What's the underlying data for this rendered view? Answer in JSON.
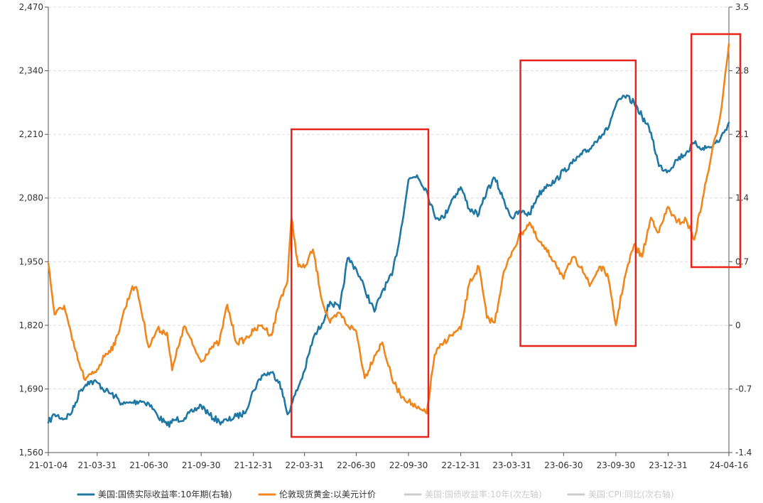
{
  "chart_data": {
    "type": "line",
    "title": "",
    "x_ticks": [
      "21-01-04",
      "21-03-31",
      "21-06-30",
      "21-09-30",
      "21-12-31",
      "22-03-31",
      "22-06-30",
      "22-09-30",
      "22-12-31",
      "23-03-31",
      "23-06-30",
      "23-09-30",
      "23-12-31",
      "24-04-16"
    ],
    "left_axis": {
      "ylim": [
        1560,
        2470
      ],
      "ticks": [
        "1,560",
        "1,690",
        "1,820",
        "1,950",
        "2,080",
        "2,210",
        "2,340",
        "2,470"
      ]
    },
    "right_axis": {
      "ylim": [
        -1.4,
        3.5
      ],
      "ticks": [
        "-1.4",
        "-0.7",
        "0",
        "0.7",
        "1.4",
        "2.1",
        "2.8",
        "3.5"
      ]
    },
    "grid": true,
    "legend_position": "bottom",
    "series": [
      {
        "name": "美国:国债实际收益率:10年期(右轴)",
        "axis": "right",
        "color": "#1f77a4",
        "active": true,
        "points": [
          [
            "21-01-04",
            -1.07
          ],
          [
            "21-01-15",
            -0.98
          ],
          [
            "21-02-01",
            -1.03
          ],
          [
            "21-02-15",
            -0.95
          ],
          [
            "21-03-01",
            -0.72
          ],
          [
            "21-03-15",
            -0.62
          ],
          [
            "21-03-31",
            -0.63
          ],
          [
            "21-04-15",
            -0.72
          ],
          [
            "21-05-01",
            -0.78
          ],
          [
            "21-05-15",
            -0.87
          ],
          [
            "21-06-01",
            -0.85
          ],
          [
            "21-06-15",
            -0.83
          ],
          [
            "21-06-30",
            -0.86
          ],
          [
            "21-07-15",
            -0.99
          ],
          [
            "21-08-01",
            -1.1
          ],
          [
            "21-08-15",
            -1.04
          ],
          [
            "21-09-01",
            -1.02
          ],
          [
            "21-09-15",
            -0.95
          ],
          [
            "21-09-30",
            -0.88
          ],
          [
            "21-10-15",
            -0.99
          ],
          [
            "21-11-01",
            -1.06
          ],
          [
            "21-11-15",
            -1.05
          ],
          [
            "21-12-01",
            -1.0
          ],
          [
            "21-12-15",
            -0.97
          ],
          [
            "21-12-31",
            -0.72
          ],
          [
            "22-01-15",
            -0.55
          ],
          [
            "22-02-01",
            -0.52
          ],
          [
            "22-02-15",
            -0.62
          ],
          [
            "22-03-01",
            -0.98
          ],
          [
            "22-03-10",
            -0.84
          ],
          [
            "22-03-31",
            -0.5
          ],
          [
            "22-04-15",
            -0.15
          ],
          [
            "22-05-01",
            0.02
          ],
          [
            "22-05-15",
            0.26
          ],
          [
            "22-06-01",
            0.18
          ],
          [
            "22-06-15",
            0.74
          ],
          [
            "22-06-30",
            0.62
          ],
          [
            "22-07-15",
            0.4
          ],
          [
            "22-08-01",
            0.15
          ],
          [
            "22-08-15",
            0.38
          ],
          [
            "22-09-01",
            0.55
          ],
          [
            "22-09-15",
            0.98
          ],
          [
            "22-09-30",
            1.6
          ],
          [
            "22-10-15",
            1.65
          ],
          [
            "22-11-01",
            1.48
          ],
          [
            "22-11-15",
            1.2
          ],
          [
            "22-12-01",
            1.18
          ],
          [
            "22-12-15",
            1.38
          ],
          [
            "22-12-31",
            1.52
          ],
          [
            "23-01-15",
            1.28
          ],
          [
            "23-02-01",
            1.22
          ],
          [
            "23-02-15",
            1.48
          ],
          [
            "23-03-01",
            1.62
          ],
          [
            "23-03-15",
            1.4
          ],
          [
            "23-03-31",
            1.18
          ],
          [
            "23-04-15",
            1.25
          ],
          [
            "23-05-01",
            1.22
          ],
          [
            "23-05-15",
            1.42
          ],
          [
            "23-06-01",
            1.55
          ],
          [
            "23-06-15",
            1.58
          ],
          [
            "23-06-30",
            1.7
          ],
          [
            "23-07-15",
            1.78
          ],
          [
            "23-08-01",
            1.88
          ],
          [
            "23-08-15",
            1.94
          ],
          [
            "23-09-01",
            2.08
          ],
          [
            "23-09-15",
            2.15
          ],
          [
            "23-09-30",
            2.42
          ],
          [
            "23-10-15",
            2.52
          ],
          [
            "23-11-01",
            2.45
          ],
          [
            "23-11-15",
            2.3
          ],
          [
            "23-12-01",
            2.12
          ],
          [
            "23-12-15",
            1.75
          ],
          [
            "23-12-31",
            1.7
          ],
          [
            "24-01-15",
            1.82
          ],
          [
            "24-02-01",
            1.9
          ],
          [
            "24-02-15",
            2.0
          ],
          [
            "24-03-01",
            1.95
          ],
          [
            "24-03-15",
            1.96
          ],
          [
            "24-04-01",
            2.05
          ],
          [
            "24-04-16",
            2.23
          ]
        ]
      },
      {
        "name": "伦敦现货黄金:以美元计价",
        "axis": "left",
        "color": "#f0861c",
        "active": true,
        "points": [
          [
            "21-01-04",
            1947
          ],
          [
            "21-01-15",
            1842
          ],
          [
            "21-02-01",
            1860
          ],
          [
            "21-02-15",
            1790
          ],
          [
            "21-03-01",
            1735
          ],
          [
            "21-03-10",
            1708
          ],
          [
            "21-03-31",
            1730
          ],
          [
            "21-04-15",
            1762
          ],
          [
            "21-05-01",
            1780
          ],
          [
            "21-05-15",
            1840
          ],
          [
            "21-06-01",
            1900
          ],
          [
            "21-06-10",
            1890
          ],
          [
            "21-06-30",
            1775
          ],
          [
            "21-07-15",
            1812
          ],
          [
            "21-08-01",
            1805
          ],
          [
            "21-08-10",
            1728
          ],
          [
            "21-08-25",
            1795
          ],
          [
            "21-09-01",
            1818
          ],
          [
            "21-09-15",
            1780
          ],
          [
            "21-09-30",
            1745
          ],
          [
            "21-10-15",
            1772
          ],
          [
            "21-11-01",
            1785
          ],
          [
            "21-11-15",
            1862
          ],
          [
            "21-12-01",
            1785
          ],
          [
            "21-12-15",
            1790
          ],
          [
            "21-12-31",
            1808
          ],
          [
            "22-01-15",
            1820
          ],
          [
            "22-02-01",
            1800
          ],
          [
            "22-02-15",
            1870
          ],
          [
            "22-03-01",
            1910
          ],
          [
            "22-03-08",
            2040
          ],
          [
            "22-03-20",
            1940
          ],
          [
            "22-03-31",
            1938
          ],
          [
            "22-04-15",
            1975
          ],
          [
            "22-05-01",
            1870
          ],
          [
            "22-05-15",
            1825
          ],
          [
            "22-06-01",
            1845
          ],
          [
            "22-06-15",
            1820
          ],
          [
            "22-06-30",
            1808
          ],
          [
            "22-07-15",
            1712
          ],
          [
            "22-08-01",
            1758
          ],
          [
            "22-08-15",
            1785
          ],
          [
            "22-09-01",
            1710
          ],
          [
            "22-09-15",
            1680
          ],
          [
            "22-09-30",
            1665
          ],
          [
            "22-10-15",
            1650
          ],
          [
            "22-11-01",
            1640
          ],
          [
            "22-11-15",
            1760
          ],
          [
            "22-12-01",
            1785
          ],
          [
            "22-12-15",
            1800
          ],
          [
            "22-12-31",
            1812
          ],
          [
            "23-01-15",
            1905
          ],
          [
            "23-02-01",
            1940
          ],
          [
            "23-02-15",
            1835
          ],
          [
            "23-03-01",
            1826
          ],
          [
            "23-03-15",
            1920
          ],
          [
            "23-03-31",
            1970
          ],
          [
            "23-04-15",
            2005
          ],
          [
            "23-05-01",
            2030
          ],
          [
            "23-05-15",
            1995
          ],
          [
            "23-06-01",
            1970
          ],
          [
            "23-06-15",
            1950
          ],
          [
            "23-06-30",
            1915
          ],
          [
            "23-07-15",
            1958
          ],
          [
            "23-08-01",
            1940
          ],
          [
            "23-08-15",
            1900
          ],
          [
            "23-09-01",
            1940
          ],
          [
            "23-09-15",
            1925
          ],
          [
            "23-09-30",
            1820
          ],
          [
            "23-10-15",
            1915
          ],
          [
            "23-11-01",
            1985
          ],
          [
            "23-11-15",
            1960
          ],
          [
            "23-12-01",
            2040
          ],
          [
            "23-12-15",
            2010
          ],
          [
            "23-12-31",
            2062
          ],
          [
            "24-01-15",
            2030
          ],
          [
            "24-02-01",
            2035
          ],
          [
            "24-02-15",
            1995
          ],
          [
            "24-03-01",
            2080
          ],
          [
            "24-03-15",
            2160
          ],
          [
            "24-04-01",
            2250
          ],
          [
            "24-04-16",
            2395
          ]
        ]
      },
      {
        "name": "美国:国债收益率:10年(次左轴)",
        "axis": "left2",
        "color": "#cccccc",
        "active": false,
        "points": []
      },
      {
        "name": "美国:CPI:同比(次右轴)",
        "axis": "right2",
        "color": "#cccccc",
        "active": false,
        "points": []
      }
    ],
    "annotations": [
      {
        "type": "highlight-box",
        "color": "#e8231b",
        "from": "22-03-08",
        "to": "22-10-15"
      },
      {
        "type": "highlight-box",
        "color": "#e8231b",
        "from": "23-04-15",
        "to": "23-10-15"
      },
      {
        "type": "highlight-box",
        "color": "#e8231b",
        "from": "24-02-10",
        "to": "24-04-16"
      }
    ]
  }
}
